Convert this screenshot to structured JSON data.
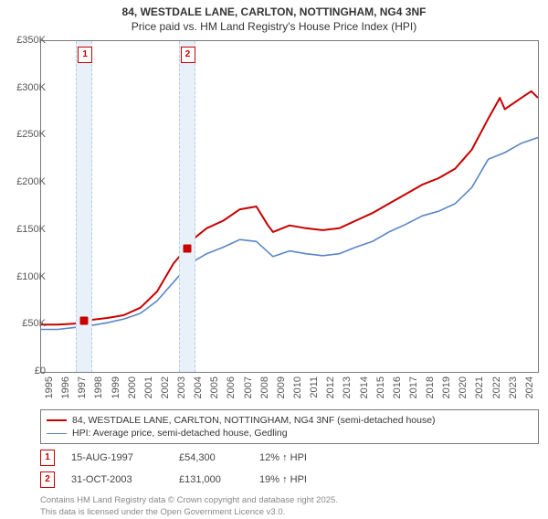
{
  "title": "84, WESTDALE LANE, CARLTON, NOTTINGHAM, NG4 3NF",
  "subtitle": "Price paid vs. HM Land Registry's House Price Index (HPI)",
  "chart": {
    "type": "line",
    "background_color": "#ffffff",
    "border_color": "#7a7a7a",
    "xlim": [
      1995,
      2025
    ],
    "ylim": [
      0,
      350000
    ],
    "ytick_step": 50000,
    "ytick_labels": [
      "£0",
      "£50K",
      "£100K",
      "£150K",
      "£200K",
      "£250K",
      "£300K",
      "£350K"
    ],
    "xtick_labels": [
      "1995",
      "1996",
      "1997",
      "1998",
      "1999",
      "2000",
      "2001",
      "2002",
      "2003",
      "2004",
      "2005",
      "2006",
      "2007",
      "2008",
      "2009",
      "2010",
      "2011",
      "2012",
      "2013",
      "2014",
      "2015",
      "2016",
      "2017",
      "2018",
      "2019",
      "2020",
      "2021",
      "2022",
      "2023",
      "2024"
    ],
    "band_color": "#e8f0f9",
    "band_border_color": "#b9cce0",
    "series": [
      {
        "name": "property",
        "label": "84, WESTDALE LANE, CARLTON, NOTTINGHAM, NG4 3NF (semi-detached house)",
        "color": "#c80000",
        "line_width": 2,
        "data": [
          [
            1995,
            50000
          ],
          [
            1996,
            50000
          ],
          [
            1997,
            51000
          ],
          [
            1997.6,
            54300
          ],
          [
            1998,
            55000
          ],
          [
            1999,
            57000
          ],
          [
            2000,
            60000
          ],
          [
            2001,
            68000
          ],
          [
            2002,
            85000
          ],
          [
            2003,
            115000
          ],
          [
            2003.8,
            131000
          ],
          [
            2004,
            138000
          ],
          [
            2005,
            152000
          ],
          [
            2006,
            160000
          ],
          [
            2007,
            172000
          ],
          [
            2008,
            175000
          ],
          [
            2008.7,
            155000
          ],
          [
            2009,
            148000
          ],
          [
            2010,
            155000
          ],
          [
            2011,
            152000
          ],
          [
            2012,
            150000
          ],
          [
            2013,
            152000
          ],
          [
            2014,
            160000
          ],
          [
            2015,
            168000
          ],
          [
            2016,
            178000
          ],
          [
            2017,
            188000
          ],
          [
            2018,
            198000
          ],
          [
            2019,
            205000
          ],
          [
            2020,
            215000
          ],
          [
            2021,
            235000
          ],
          [
            2022,
            268000
          ],
          [
            2022.7,
            290000
          ],
          [
            2023,
            278000
          ],
          [
            2024,
            290000
          ],
          [
            2024.6,
            297000
          ],
          [
            2025,
            290000
          ]
        ]
      },
      {
        "name": "hpi",
        "label": "HPI: Average price, semi-detached house, Gedling",
        "color": "#5a86c4",
        "line_width": 1.6,
        "data": [
          [
            1995,
            45000
          ],
          [
            1996,
            45000
          ],
          [
            1997,
            47000
          ],
          [
            1998,
            49000
          ],
          [
            1999,
            52000
          ],
          [
            2000,
            56000
          ],
          [
            2001,
            62000
          ],
          [
            2002,
            75000
          ],
          [
            2003,
            95000
          ],
          [
            2004,
            115000
          ],
          [
            2005,
            125000
          ],
          [
            2006,
            132000
          ],
          [
            2007,
            140000
          ],
          [
            2008,
            138000
          ],
          [
            2009,
            122000
          ],
          [
            2010,
            128000
          ],
          [
            2011,
            125000
          ],
          [
            2012,
            123000
          ],
          [
            2013,
            125000
          ],
          [
            2014,
            132000
          ],
          [
            2015,
            138000
          ],
          [
            2016,
            148000
          ],
          [
            2017,
            156000
          ],
          [
            2018,
            165000
          ],
          [
            2019,
            170000
          ],
          [
            2020,
            178000
          ],
          [
            2021,
            195000
          ],
          [
            2022,
            225000
          ],
          [
            2023,
            232000
          ],
          [
            2024,
            242000
          ],
          [
            2025,
            248000
          ]
        ]
      }
    ],
    "sale_markers": [
      {
        "n": "1",
        "x": 1997.6,
        "y": 54300
      },
      {
        "n": "2",
        "x": 2003.8,
        "y": 131000
      }
    ],
    "marker_box_color": "#cc0000"
  },
  "legend": {
    "rows": [
      {
        "color": "#c80000",
        "width": 2,
        "text": "84, WESTDALE LANE, CARLTON, NOTTINGHAM, NG4 3NF (semi-detached house)"
      },
      {
        "color": "#5a86c4",
        "width": 1.6,
        "text": "HPI: Average price, semi-detached house, Gedling"
      }
    ]
  },
  "sales": [
    {
      "n": "1",
      "date": "15-AUG-1997",
      "price": "£54,300",
      "delta": "12% ↑ HPI"
    },
    {
      "n": "2",
      "date": "31-OCT-2003",
      "price": "£131,000",
      "delta": "19% ↑ HPI"
    }
  ],
  "footer": {
    "line1": "Contains HM Land Registry data © Crown copyright and database right 2025.",
    "line2": "This data is licensed under the Open Government Licence v3.0."
  }
}
